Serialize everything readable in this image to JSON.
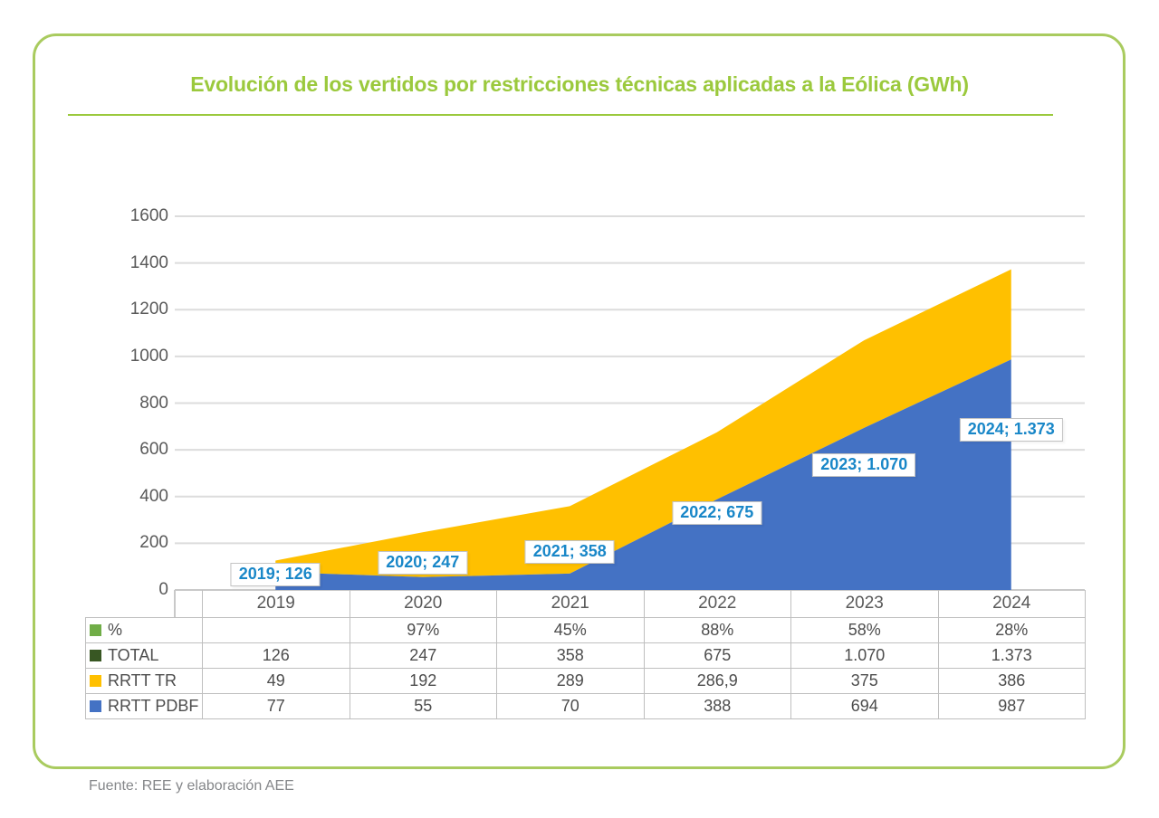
{
  "page": {
    "title": "Evolución de los vertidos por restricciones técnicas aplicadas a la Eólica (GWh)",
    "source": "Fuente: REE y elaboración AEE"
  },
  "colors": {
    "title_green": "#9BC93D",
    "frame_green": "#A9CB5F",
    "area_blue": "#4472C4",
    "area_yellow": "#FFC000",
    "point_label_blue": "#1987C8",
    "legend_percent_green": "#70AD47",
    "legend_total_green": "#385723",
    "gridline_gray": "#DCDCDC",
    "axis_text_gray": "#595959"
  },
  "chart_data": {
    "type": "area",
    "stacked": true,
    "title": "Evolución de los vertidos por restricciones técnicas aplicadas a la Eólica (GWh)",
    "categories": [
      "2019",
      "2020",
      "2021",
      "2022",
      "2023",
      "2024"
    ],
    "series": [
      {
        "name": "RRTT PDBF",
        "color": "#4472C4",
        "values": [
          77,
          55,
          70,
          388,
          694,
          987
        ]
      },
      {
        "name": "RRTT TR",
        "color": "#FFC000",
        "values": [
          49,
          192,
          289,
          286.9,
          375,
          386
        ]
      }
    ],
    "totals": [
      126,
      247,
      358,
      675,
      1070,
      1373
    ],
    "point_labels": [
      "2019; 126",
      "2020; 247",
      "2021; 358",
      "2022; 675",
      "2023; 1.070",
      "2024; 1.373"
    ],
    "xlabel": "",
    "ylabel": "",
    "ylim": [
      0,
      1600
    ],
    "ytick_step": 200,
    "yticks": [
      "0",
      "200",
      "400",
      "600",
      "800",
      "1000",
      "1200",
      "1400",
      "1600"
    ],
    "grid": true,
    "legend_position": "table-left",
    "table": {
      "rows": [
        {
          "label": "%",
          "swatch": "#70AD47",
          "values": [
            "",
            "97%",
            "45%",
            "88%",
            "58%",
            "28%"
          ]
        },
        {
          "label": "TOTAL",
          "swatch": "#385723",
          "values": [
            "126",
            "247",
            "358",
            "675",
            "1.070",
            "1.373"
          ]
        },
        {
          "label": "RRTT TR",
          "swatch": "#FFC000",
          "values": [
            "49",
            "192",
            "289",
            "286,9",
            "375",
            "386"
          ]
        },
        {
          "label": "RRTT PDBF",
          "swatch": "#4472C4",
          "values": [
            "77",
            "55",
            "70",
            "388",
            "694",
            "987"
          ]
        }
      ]
    }
  }
}
